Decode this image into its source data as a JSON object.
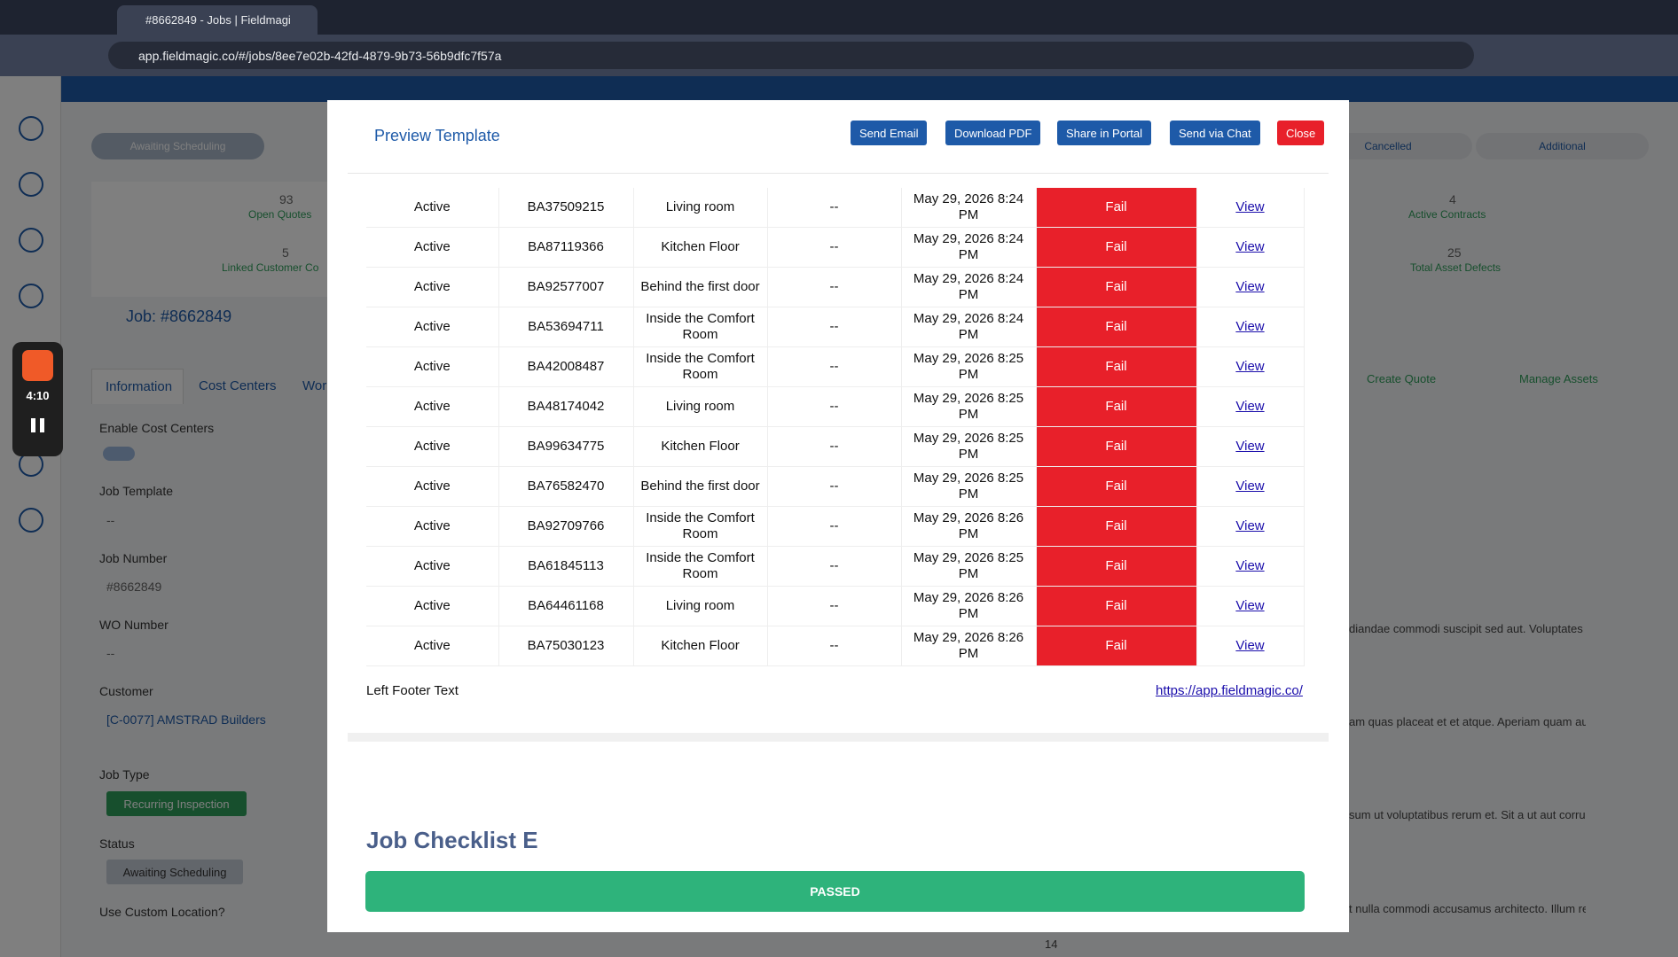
{
  "browser": {
    "tab_title": "#8662849 - Jobs | Fieldmagi",
    "url": "app.fieldmagic.co/#/jobs/8ee7e02b-42fd-4879-9b73-56b9dfc7f57a",
    "recording_time": "4:10"
  },
  "background": {
    "steps": [
      "Awaiting Scheduling",
      "Cancelled",
      "Additional"
    ],
    "stats": [
      {
        "value": "93",
        "label": "Open Quotes"
      },
      {
        "value": "4",
        "label": "Active Contracts"
      },
      {
        "value": "5",
        "label": "Linked Customer Co"
      },
      {
        "value": "25",
        "label": "Total Asset Defects"
      }
    ],
    "job_title": "Job: #8662849",
    "tabs": [
      "Information",
      "Cost Centers",
      "Wor"
    ],
    "fields": {
      "enable_cost_centers": "Enable Cost Centers",
      "job_template_label": "Job Template",
      "job_template": "--",
      "job_number_label": "Job Number",
      "job_number": "#8662849",
      "wo_number_label": "WO Number",
      "wo_number": "--",
      "customer_label": "Customer",
      "customer": "[C-0077] AMSTRAD Builders",
      "job_type_label": "Job Type",
      "job_type": "Recurring Inspection",
      "status_label": "Status",
      "status": "Awaiting Scheduling",
      "custom_location_label": "Use Custom Location?"
    },
    "actions": [
      "Create Quote",
      "Manage Assets"
    ],
    "notes": [
      "diandae commodi suscipit sed aut. Voluptates r",
      "am quas placeat et et atque. Aperiam quam aut",
      "sum ut voluptatibus rerum et. Sit a ut aut corrup",
      "t nulla commodi accusamus architecto. Illum rep"
    ],
    "note_number": "14"
  },
  "modal": {
    "title": "Preview Template",
    "buttons": [
      "Send Email",
      "Download PDF",
      "Share in Portal",
      "Send via Chat",
      "Close"
    ],
    "rows": [
      [
        "Active",
        "BA37509215",
        "Living room",
        "--",
        "May 29, 2026 8:24 PM",
        "Fail",
        "View"
      ],
      [
        "Active",
        "BA87119366",
        "Kitchen Floor",
        "--",
        "May 29, 2026 8:24 PM",
        "Fail",
        "View"
      ],
      [
        "Active",
        "BA92577007",
        "Behind the first door",
        "--",
        "May 29, 2026 8:24 PM",
        "Fail",
        "View"
      ],
      [
        "Active",
        "BA53694711",
        "Inside the Comfort Room",
        "--",
        "May 29, 2026 8:24 PM",
        "Fail",
        "View"
      ],
      [
        "Active",
        "BA42008487",
        "Inside the Comfort Room",
        "--",
        "May 29, 2026 8:25 PM",
        "Fail",
        "View"
      ],
      [
        "Active",
        "BA48174042",
        "Living room",
        "--",
        "May 29, 2026 8:25 PM",
        "Fail",
        "View"
      ],
      [
        "Active",
        "BA99634775",
        "Kitchen Floor",
        "--",
        "May 29, 2026 8:25 PM",
        "Fail",
        "View"
      ],
      [
        "Active",
        "BA76582470",
        "Behind the first door",
        "--",
        "May 29, 2026 8:25 PM",
        "Fail",
        "View"
      ],
      [
        "Active",
        "BA92709766",
        "Inside the Comfort Room",
        "--",
        "May 29, 2026 8:26 PM",
        "Fail",
        "View"
      ],
      [
        "Active",
        "BA61845113",
        "Inside the Comfort Room",
        "--",
        "May 29, 2026 8:25 PM",
        "Fail",
        "View"
      ],
      [
        "Active",
        "BA64461168",
        "Living room",
        "--",
        "May 29, 2026 8:26 PM",
        "Fail",
        "View"
      ],
      [
        "Active",
        "BA75030123",
        "Kitchen Floor",
        "--",
        "May 29, 2026 8:26 PM",
        "Fail",
        "View"
      ]
    ],
    "footer_left": "Left Footer Text",
    "footer_link": "https://app.fieldmagic.co/",
    "checklist_title": "Job Checklist E",
    "checklist_status": "PASSED"
  }
}
